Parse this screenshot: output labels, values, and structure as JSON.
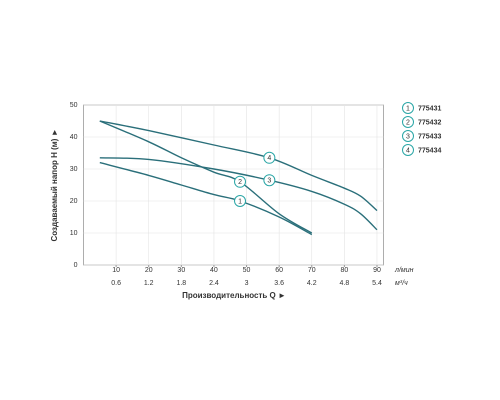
{
  "chart_data": {
    "type": "line",
    "y_label": "Создаваемый напор H (м) ►",
    "x_label": "Производительность Q ►",
    "x_unit": "л/мин",
    "x2_unit": "м³/ч",
    "xlim": [
      0,
      92
    ],
    "xticks": [
      10,
      20,
      30,
      40,
      50,
      60,
      70,
      80,
      90
    ],
    "x2lim": [
      0,
      5.52
    ],
    "x2ticks": [
      0.6,
      1.2,
      1.8,
      2.4,
      3.0,
      3.6,
      4.2,
      4.8,
      5.4
    ],
    "ylim": [
      0,
      50
    ],
    "yticks": [
      0,
      10,
      20,
      30,
      40,
      50
    ],
    "grid": true,
    "series": [
      {
        "name": "775431",
        "label": "1",
        "color": "#2a6f7a",
        "x": [
          5,
          20,
          30,
          40,
          48,
          60,
          70
        ],
        "values": [
          32,
          28,
          25,
          22,
          20,
          15,
          9.5
        ]
      },
      {
        "name": "775432",
        "label": "2",
        "color": "#2a6f7a",
        "x": [
          5,
          20,
          30,
          40,
          48,
          60,
          70
        ],
        "values": [
          45,
          38.5,
          33.5,
          29,
          26,
          16,
          10
        ]
      },
      {
        "name": "775433",
        "label": "3",
        "color": "#2a6f7a",
        "x": [
          5,
          20,
          40,
          57,
          70,
          80,
          85,
          90
        ],
        "values": [
          33.5,
          33,
          30,
          26.5,
          23,
          19,
          16,
          11
        ]
      },
      {
        "name": "775434",
        "label": "4",
        "color": "#2a6f7a",
        "x": [
          5,
          20,
          40,
          57,
          70,
          80,
          85,
          90
        ],
        "values": [
          45,
          42,
          37.5,
          33.5,
          28,
          24,
          21.5,
          17
        ]
      }
    ]
  }
}
